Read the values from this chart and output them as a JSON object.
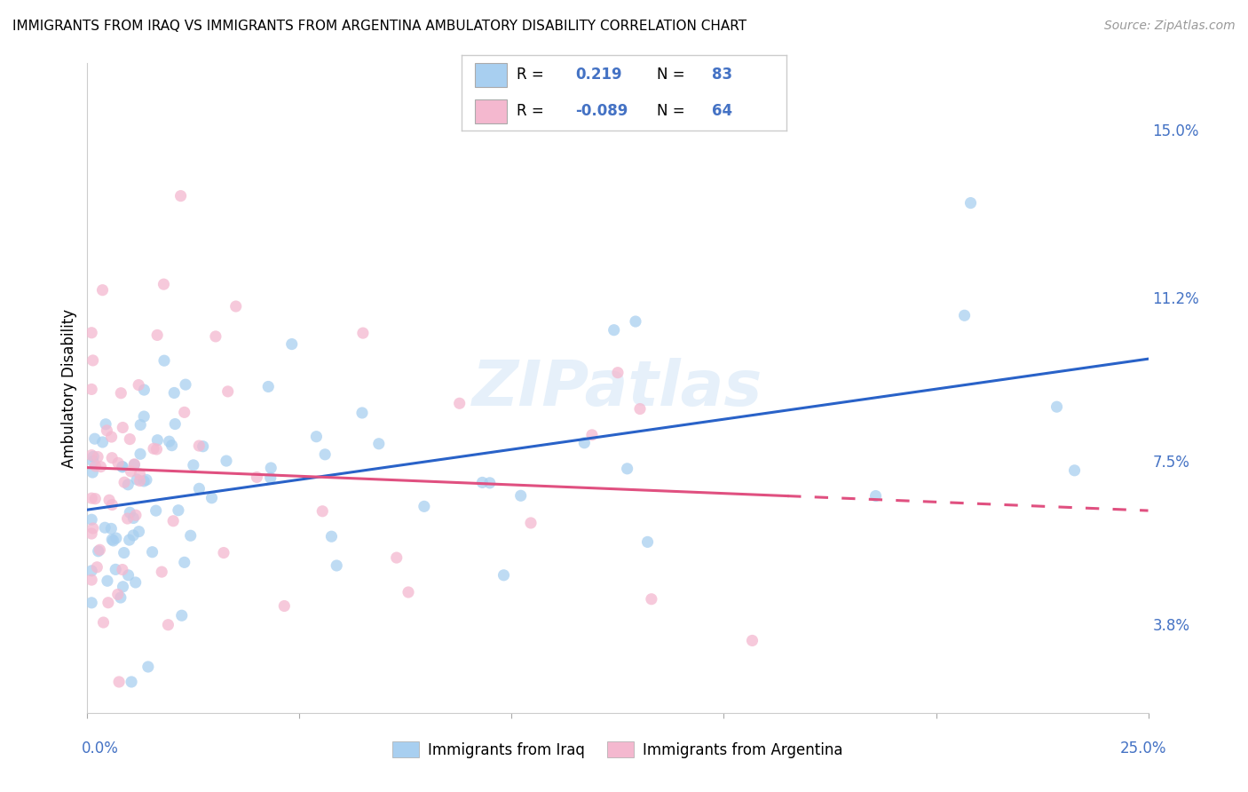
{
  "title": "IMMIGRANTS FROM IRAQ VS IMMIGRANTS FROM ARGENTINA AMBULATORY DISABILITY CORRELATION CHART",
  "source": "Source: ZipAtlas.com",
  "ylabel": "Ambulatory Disability",
  "yticks_right": [
    "3.8%",
    "7.5%",
    "11.2%",
    "15.0%"
  ],
  "yticks_right_vals": [
    0.038,
    0.075,
    0.112,
    0.15
  ],
  "watermark": "ZIPatlas",
  "legend1_r": "0.219",
  "legend1_n": "83",
  "legend2_r": "-0.089",
  "legend2_n": "64",
  "iraq_color": "#a8cff0",
  "argentina_color": "#f4b8cf",
  "iraq_line_color": "#2962c8",
  "argentina_line_color": "#e05080",
  "xlim": [
    0.0,
    0.25
  ],
  "ylim": [
    0.018,
    0.165
  ],
  "background_color": "#ffffff",
  "grid_color": "#dddddd",
  "grid_style": "--"
}
